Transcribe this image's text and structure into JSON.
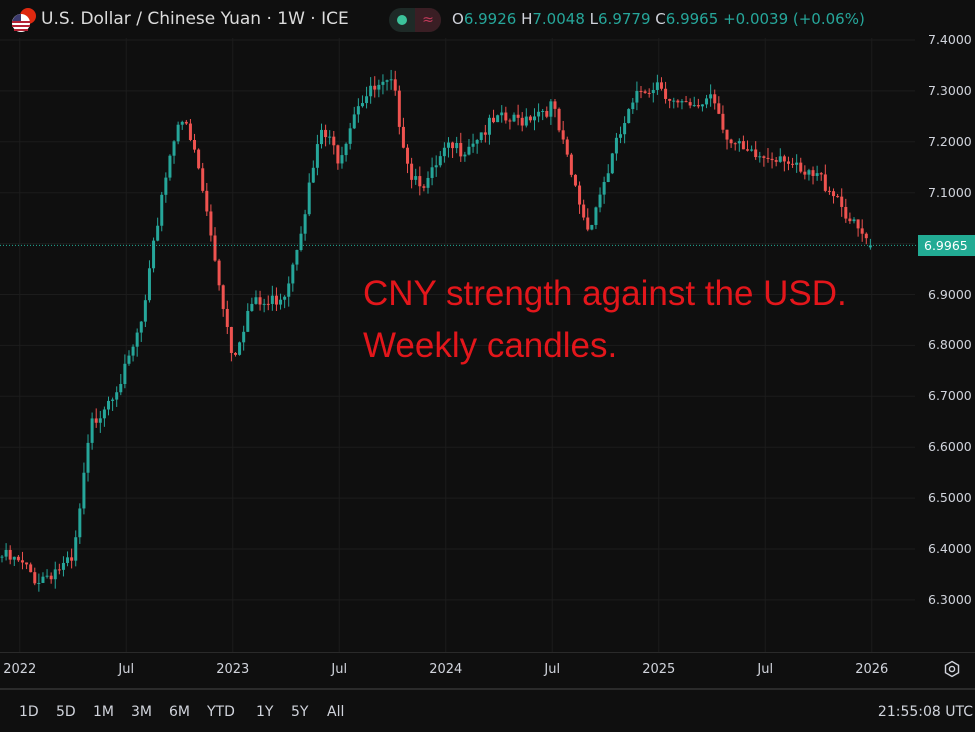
{
  "header": {
    "title": "U.S. Dollar / Chinese Yuan · 1W · ICE",
    "pill_icon_right": "≈",
    "ohlc": {
      "o_label": "O",
      "o": "6.9926",
      "h_label": "H",
      "h": "7.0048",
      "l_label": "L",
      "l": "6.9779",
      "c_label": "C",
      "c": "6.9965",
      "change": "+0.0039 (+0.06%)"
    }
  },
  "annotation": {
    "line1": "CNY strength against the USD.",
    "line2": "Weekly candles."
  },
  "time_axis": {
    "labels": [
      "2022",
      "Jul",
      "2023",
      "Jul",
      "2024",
      "Jul",
      "2025",
      "Jul",
      "2026"
    ]
  },
  "price_axis": {
    "labels": [
      "7.4000",
      "7.3000",
      "7.2000",
      "7.1000",
      "6.9000",
      "6.8000",
      "6.7000",
      "6.6000",
      "6.5000",
      "6.4000",
      "6.3000"
    ],
    "current": "6.9965"
  },
  "bottom_bar": {
    "ranges": [
      "1D",
      "5D",
      "1M",
      "3M",
      "6M",
      "YTD",
      "1Y",
      "5Y",
      "All"
    ],
    "clock": "21:55:08 UTC"
  },
  "colors": {
    "up": "#26a69a",
    "down": "#ef5350",
    "annotation": "#e3161b",
    "current": "#22ab94"
  },
  "chart_data": {
    "type": "candlestick",
    "title": "U.S. Dollar / Chinese Yuan · 1W · ICE",
    "interval": "1W",
    "ylim": [
      6.25,
      7.43
    ],
    "approx_monthly_closes": {
      "months": [
        "2021-12",
        "2022-01",
        "2022-02",
        "2022-03",
        "2022-04",
        "2022-05",
        "2022-06",
        "2022-07",
        "2022-08",
        "2022-09",
        "2022-10",
        "2022-11",
        "2022-12",
        "2023-01",
        "2023-02",
        "2023-03",
        "2023-04",
        "2023-05",
        "2023-06",
        "2023-07",
        "2023-08",
        "2023-09",
        "2023-10",
        "2023-11",
        "2023-12",
        "2024-01",
        "2024-02",
        "2024-03",
        "2024-04",
        "2024-05",
        "2024-06",
        "2024-07",
        "2024-08",
        "2024-09",
        "2024-10",
        "2024-11",
        "2024-12",
        "2025-01",
        "2025-02",
        "2025-03",
        "2025-04",
        "2025-05",
        "2025-06",
        "2025-07",
        "2025-08",
        "2025-09",
        "2025-10",
        "2025-11",
        "2025-12",
        "2026-01"
      ],
      "values": [
        6.385,
        6.37,
        6.34,
        6.36,
        6.37,
        6.64,
        6.7,
        6.75,
        6.86,
        7.1,
        7.26,
        7.16,
        6.97,
        6.78,
        6.88,
        6.88,
        6.91,
        7.06,
        7.22,
        7.17,
        7.28,
        7.3,
        7.31,
        7.14,
        7.12,
        7.18,
        7.19,
        7.22,
        7.24,
        7.24,
        7.26,
        7.27,
        7.14,
        7.03,
        7.13,
        7.23,
        7.3,
        7.32,
        7.27,
        7.26,
        7.3,
        7.2,
        7.17,
        7.17,
        7.18,
        7.13,
        7.13,
        7.1,
        7.03,
        6.9965
      ]
    },
    "last": {
      "open": 6.9926,
      "high": 7.0048,
      "low": 6.9779,
      "close": 6.9965
    }
  }
}
